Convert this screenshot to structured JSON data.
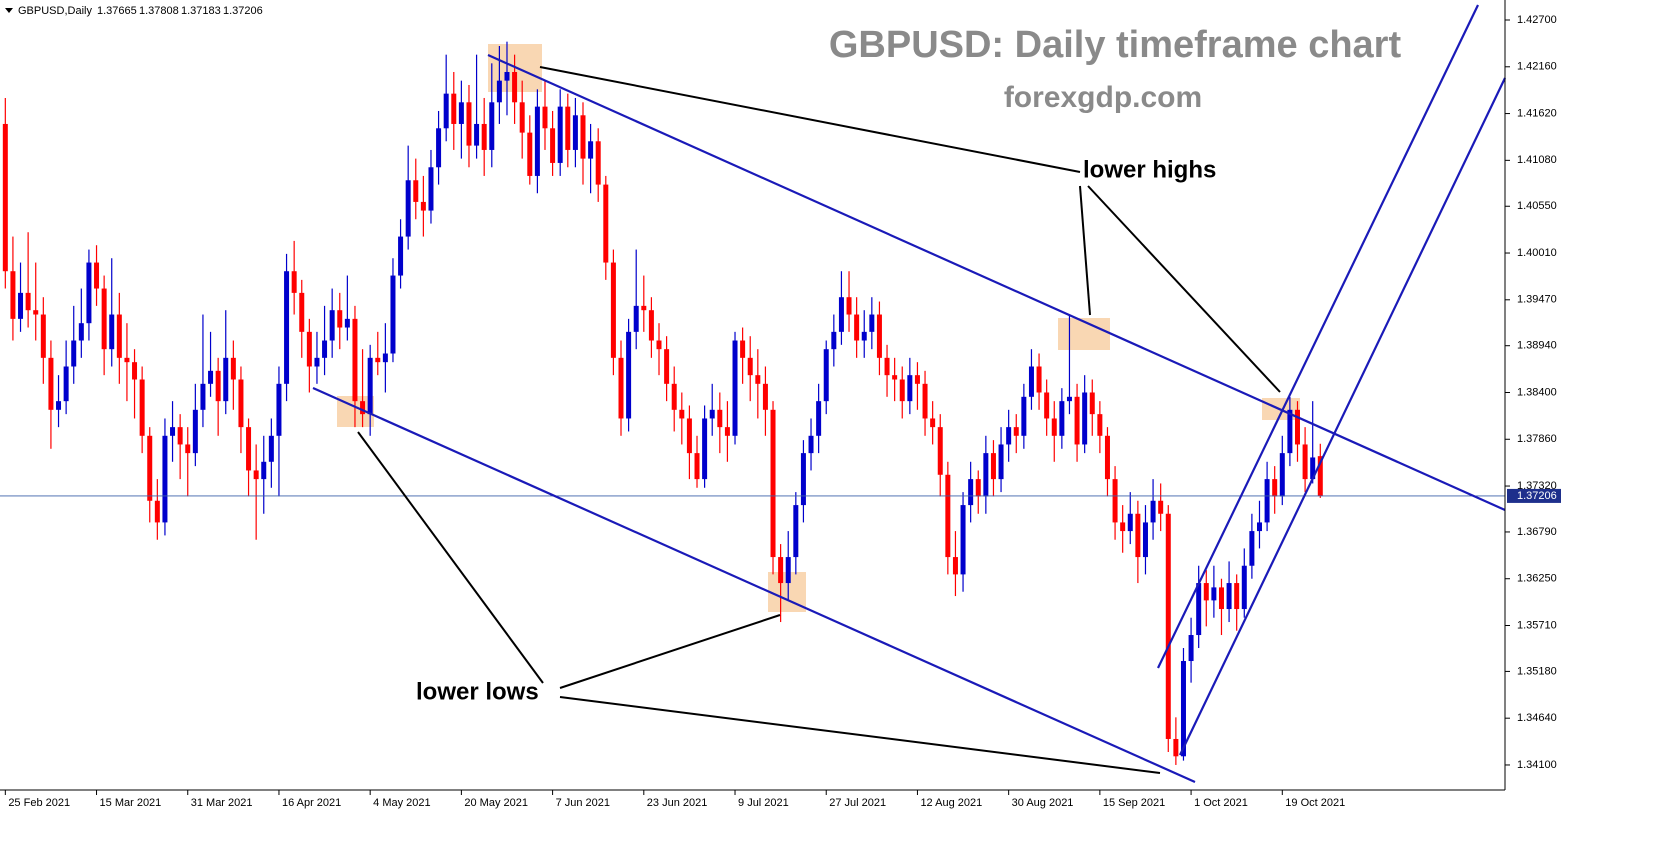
{
  "chart_data": {
    "type": "candlestick",
    "title": "GBPUSD: Daily timeframe chart",
    "subtitle": "forexgdp.com",
    "symbol": "GBPUSD,Daily",
    "annotations": [
      "lower highs",
      "lower lows"
    ],
    "up_color": "#0000cc",
    "down_color": "#ff0000",
    "grid": false,
    "xlim": [
      -0.7,
      197.3
    ],
    "ylim": [
      1.33811,
      1.42931
    ],
    "xticks": [
      {
        "value": 0,
        "label": "25 Feb 2021"
      },
      {
        "value": 12,
        "label": "15 Mar 2021"
      },
      {
        "value": 24,
        "label": "31 Mar 2021"
      },
      {
        "value": 36,
        "label": "16 Apr 2021"
      },
      {
        "value": 48,
        "label": "4 May 2021"
      },
      {
        "value": 60,
        "label": "20 May 2021"
      },
      {
        "value": 72,
        "label": "7 Jun 2021"
      },
      {
        "value": 84,
        "label": "23 Jun 2021"
      },
      {
        "value": 96,
        "label": "9 Jul 2021"
      },
      {
        "value": 108,
        "label": "27 Jul 2021"
      },
      {
        "value": 120,
        "label": "12 Aug 2021"
      },
      {
        "value": 132,
        "label": "30 Aug 2021"
      },
      {
        "value": 144,
        "label": "15 Sep 2021"
      },
      {
        "value": 156,
        "label": "1 Oct 2021"
      },
      {
        "value": 168,
        "label": "19 Oct 2021"
      }
    ],
    "yticks": [
      {
        "value": 1.427,
        "label": "1.42700"
      },
      {
        "value": 1.4216,
        "label": "1.42160"
      },
      {
        "value": 1.4162,
        "label": "1.41620"
      },
      {
        "value": 1.4108,
        "label": "1.41080"
      },
      {
        "value": 1.4055,
        "label": "1.40550"
      },
      {
        "value": 1.4001,
        "label": "1.40010"
      },
      {
        "value": 1.3947,
        "label": "1.39470"
      },
      {
        "value": 1.3894,
        "label": "1.38940"
      },
      {
        "value": 1.384,
        "label": "1.38400"
      },
      {
        "value": 1.3786,
        "label": "1.37860"
      },
      {
        "value": 1.3732,
        "label": "1.37320"
      },
      {
        "value": 1.3679,
        "label": "1.36790"
      },
      {
        "value": 1.3625,
        "label": "1.36250"
      },
      {
        "value": 1.3571,
        "label": "1.35710"
      },
      {
        "value": 1.3518,
        "label": "1.35180"
      },
      {
        "value": 1.3464,
        "label": "1.34640"
      },
      {
        "value": 1.341,
        "label": "1.34100"
      }
    ],
    "candles": [
      [
        1.415,
        1.418,
        1.396,
        1.398
      ],
      [
        1.398,
        1.402,
        1.39,
        1.3925
      ],
      [
        1.3925,
        1.399,
        1.391,
        1.3955
      ],
      [
        1.3955,
        1.4025,
        1.3915,
        1.3935
      ],
      [
        1.3935,
        1.399,
        1.39,
        1.393
      ],
      [
        1.393,
        1.395,
        1.385,
        1.388
      ],
      [
        1.388,
        1.39,
        1.3775,
        1.382
      ],
      [
        1.382,
        1.386,
        1.38,
        1.383
      ],
      [
        1.383,
        1.39,
        1.3815,
        1.387
      ],
      [
        1.387,
        1.394,
        1.385,
        1.39
      ],
      [
        1.39,
        1.396,
        1.388,
        1.392
      ],
      [
        1.392,
        1.4005,
        1.39,
        1.399
      ],
      [
        1.399,
        1.401,
        1.394,
        1.396
      ],
      [
        1.396,
        1.3975,
        1.386,
        1.389
      ],
      [
        1.389,
        1.3995,
        1.387,
        1.393
      ],
      [
        1.393,
        1.3955,
        1.385,
        1.388
      ],
      [
        1.388,
        1.392,
        1.383,
        1.3875
      ],
      [
        1.3875,
        1.389,
        1.381,
        1.3855
      ],
      [
        1.3855,
        1.387,
        1.377,
        1.379
      ],
      [
        1.379,
        1.38,
        1.369,
        1.3715
      ],
      [
        1.3715,
        1.374,
        1.367,
        1.369
      ],
      [
        1.369,
        1.381,
        1.3675,
        1.379
      ],
      [
        1.379,
        1.383,
        1.376,
        1.38
      ],
      [
        1.38,
        1.3815,
        1.374,
        1.378
      ],
      [
        1.378,
        1.38,
        1.372,
        1.377
      ],
      [
        1.377,
        1.385,
        1.3755,
        1.382
      ],
      [
        1.382,
        1.393,
        1.38,
        1.385
      ],
      [
        1.385,
        1.391,
        1.3835,
        1.3865
      ],
      [
        1.3865,
        1.388,
        1.379,
        1.383
      ],
      [
        1.383,
        1.3935,
        1.3815,
        1.388
      ],
      [
        1.388,
        1.39,
        1.382,
        1.3855
      ],
      [
        1.3855,
        1.387,
        1.377,
        1.38
      ],
      [
        1.38,
        1.381,
        1.372,
        1.375
      ],
      [
        1.375,
        1.378,
        1.367,
        1.374
      ],
      [
        1.374,
        1.379,
        1.37,
        1.376
      ],
      [
        1.376,
        1.381,
        1.373,
        1.379
      ],
      [
        1.379,
        1.387,
        1.372,
        1.385
      ],
      [
        1.385,
        1.4,
        1.383,
        1.398
      ],
      [
        1.398,
        1.4015,
        1.393,
        1.3955
      ],
      [
        1.3955,
        1.397,
        1.388,
        1.391
      ],
      [
        1.391,
        1.3925,
        1.384,
        1.387
      ],
      [
        1.387,
        1.391,
        1.385,
        1.388
      ],
      [
        1.388,
        1.394,
        1.386,
        1.39
      ],
      [
        1.39,
        1.396,
        1.388,
        1.3935
      ],
      [
        1.3935,
        1.3955,
        1.389,
        1.3915
      ],
      [
        1.3915,
        1.3975,
        1.39,
        1.3925
      ],
      [
        1.3925,
        1.394,
        1.38,
        1.383
      ],
      [
        1.383,
        1.389,
        1.38,
        1.3815
      ],
      [
        1.3815,
        1.3895,
        1.379,
        1.388
      ],
      [
        1.388,
        1.391,
        1.386,
        1.3875
      ],
      [
        1.3875,
        1.392,
        1.384,
        1.3885
      ],
      [
        1.3885,
        1.3995,
        1.3875,
        1.3975
      ],
      [
        1.3975,
        1.404,
        1.396,
        1.402
      ],
      [
        1.402,
        1.4125,
        1.4005,
        1.4085
      ],
      [
        1.4085,
        1.411,
        1.404,
        1.406
      ],
      [
        1.406,
        1.409,
        1.402,
        1.405
      ],
      [
        1.405,
        1.412,
        1.4035,
        1.41
      ],
      [
        1.41,
        1.4165,
        1.408,
        1.4145
      ],
      [
        1.4145,
        1.423,
        1.413,
        1.4185
      ],
      [
        1.4185,
        1.421,
        1.412,
        1.415
      ],
      [
        1.415,
        1.42,
        1.411,
        1.4175
      ],
      [
        1.4175,
        1.4195,
        1.41,
        1.4125
      ],
      [
        1.4125,
        1.423,
        1.411,
        1.415
      ],
      [
        1.415,
        1.418,
        1.409,
        1.412
      ],
      [
        1.412,
        1.422,
        1.41,
        1.4175
      ],
      [
        1.4175,
        1.424,
        1.415,
        1.42
      ],
      [
        1.42,
        1.4245,
        1.416,
        1.421
      ],
      [
        1.421,
        1.423,
        1.415,
        1.4175
      ],
      [
        1.4175,
        1.42,
        1.411,
        1.414
      ],
      [
        1.414,
        1.416,
        1.408,
        1.409
      ],
      [
        1.409,
        1.419,
        1.407,
        1.417
      ],
      [
        1.417,
        1.42,
        1.412,
        1.4145
      ],
      [
        1.4145,
        1.4165,
        1.409,
        1.4105
      ],
      [
        1.4105,
        1.419,
        1.409,
        1.417
      ],
      [
        1.417,
        1.4185,
        1.41,
        1.412
      ],
      [
        1.412,
        1.418,
        1.41,
        1.416
      ],
      [
        1.416,
        1.4175,
        1.408,
        1.411
      ],
      [
        1.411,
        1.415,
        1.407,
        1.413
      ],
      [
        1.413,
        1.4145,
        1.406,
        1.408
      ],
      [
        1.408,
        1.409,
        1.397,
        1.399
      ],
      [
        1.399,
        1.4005,
        1.386,
        1.388
      ],
      [
        1.388,
        1.39,
        1.379,
        1.381
      ],
      [
        1.381,
        1.3925,
        1.3795,
        1.391
      ],
      [
        1.391,
        1.4005,
        1.389,
        1.394
      ],
      [
        1.394,
        1.3975,
        1.391,
        1.3935
      ],
      [
        1.3935,
        1.395,
        1.388,
        1.39
      ],
      [
        1.39,
        1.392,
        1.386,
        1.389
      ],
      [
        1.389,
        1.3905,
        1.383,
        1.385
      ],
      [
        1.385,
        1.387,
        1.3795,
        1.382
      ],
      [
        1.382,
        1.384,
        1.378,
        1.381
      ],
      [
        1.381,
        1.3825,
        1.374,
        1.377
      ],
      [
        1.377,
        1.379,
        1.373,
        1.374
      ],
      [
        1.374,
        1.3825,
        1.373,
        1.381
      ],
      [
        1.381,
        1.385,
        1.379,
        1.382
      ],
      [
        1.382,
        1.384,
        1.377,
        1.38
      ],
      [
        1.38,
        1.383,
        1.376,
        1.379
      ],
      [
        1.379,
        1.391,
        1.378,
        1.39
      ],
      [
        1.39,
        1.3915,
        1.385,
        1.388
      ],
      [
        1.388,
        1.3905,
        1.383,
        1.386
      ],
      [
        1.386,
        1.389,
        1.381,
        1.385
      ],
      [
        1.385,
        1.387,
        1.379,
        1.382
      ],
      [
        1.382,
        1.383,
        1.363,
        1.365
      ],
      [
        1.365,
        1.3665,
        1.3575,
        1.362
      ],
      [
        1.362,
        1.368,
        1.36,
        1.365
      ],
      [
        1.365,
        1.3725,
        1.363,
        1.371
      ],
      [
        1.371,
        1.3785,
        1.369,
        1.377
      ],
      [
        1.377,
        1.381,
        1.375,
        1.379
      ],
      [
        1.379,
        1.385,
        1.377,
        1.383
      ],
      [
        1.383,
        1.39,
        1.3815,
        1.389
      ],
      [
        1.389,
        1.393,
        1.387,
        1.391
      ],
      [
        1.391,
        1.398,
        1.3895,
        1.395
      ],
      [
        1.395,
        1.398,
        1.391,
        1.393
      ],
      [
        1.393,
        1.395,
        1.388,
        1.39
      ],
      [
        1.39,
        1.3935,
        1.388,
        1.391
      ],
      [
        1.391,
        1.395,
        1.389,
        1.393
      ],
      [
        1.393,
        1.3945,
        1.386,
        1.388
      ],
      [
        1.388,
        1.3895,
        1.3835,
        1.386
      ],
      [
        1.386,
        1.388,
        1.383,
        1.3855
      ],
      [
        1.3855,
        1.387,
        1.381,
        1.383
      ],
      [
        1.383,
        1.388,
        1.3815,
        1.386
      ],
      [
        1.386,
        1.3875,
        1.382,
        1.385
      ],
      [
        1.385,
        1.3865,
        1.379,
        1.381
      ],
      [
        1.381,
        1.383,
        1.378,
        1.38
      ],
      [
        1.38,
        1.3815,
        1.372,
        1.3745
      ],
      [
        1.3745,
        1.376,
        1.363,
        1.365
      ],
      [
        1.365,
        1.368,
        1.3605,
        1.363
      ],
      [
        1.363,
        1.3725,
        1.361,
        1.371
      ],
      [
        1.371,
        1.376,
        1.369,
        1.374
      ],
      [
        1.374,
        1.375,
        1.37,
        1.372
      ],
      [
        1.372,
        1.379,
        1.37,
        1.377
      ],
      [
        1.377,
        1.3785,
        1.372,
        1.374
      ],
      [
        1.374,
        1.38,
        1.3725,
        1.378
      ],
      [
        1.378,
        1.382,
        1.376,
        1.38
      ],
      [
        1.38,
        1.3815,
        1.377,
        1.379
      ],
      [
        1.379,
        1.385,
        1.3775,
        1.3835
      ],
      [
        1.3835,
        1.389,
        1.382,
        1.387
      ],
      [
        1.387,
        1.3885,
        1.382,
        1.384
      ],
      [
        1.384,
        1.3855,
        1.379,
        1.381
      ],
      [
        1.381,
        1.383,
        1.376,
        1.379
      ],
      [
        1.379,
        1.3845,
        1.3775,
        1.383
      ],
      [
        1.383,
        1.393,
        1.3815,
        1.3835
      ],
      [
        1.3835,
        1.385,
        1.376,
        1.378
      ],
      [
        1.378,
        1.386,
        1.377,
        1.384
      ],
      [
        1.384,
        1.3855,
        1.379,
        1.3815
      ],
      [
        1.3815,
        1.383,
        1.377,
        1.379
      ],
      [
        1.379,
        1.38,
        1.372,
        1.374
      ],
      [
        1.374,
        1.3755,
        1.367,
        1.369
      ],
      [
        1.369,
        1.371,
        1.3655,
        1.368
      ],
      [
        1.368,
        1.3725,
        1.3665,
        1.37
      ],
      [
        1.37,
        1.3715,
        1.362,
        1.365
      ],
      [
        1.365,
        1.371,
        1.363,
        1.369
      ],
      [
        1.369,
        1.374,
        1.367,
        1.3715
      ],
      [
        1.3715,
        1.3735,
        1.368,
        1.37
      ],
      [
        1.37,
        1.371,
        1.3425,
        1.344
      ],
      [
        1.344,
        1.3465,
        1.341,
        1.342
      ],
      [
        1.342,
        1.3545,
        1.3415,
        1.353
      ],
      [
        1.353,
        1.358,
        1.3505,
        1.356
      ],
      [
        1.356,
        1.364,
        1.3545,
        1.362
      ],
      [
        1.362,
        1.3635,
        1.357,
        1.36
      ],
      [
        1.36,
        1.364,
        1.358,
        1.3615
      ],
      [
        1.3615,
        1.3625,
        1.356,
        1.359
      ],
      [
        1.359,
        1.3645,
        1.3575,
        1.362
      ],
      [
        1.362,
        1.363,
        1.3565,
        1.359
      ],
      [
        1.359,
        1.366,
        1.358,
        1.364
      ],
      [
        1.364,
        1.37,
        1.3625,
        1.368
      ],
      [
        1.368,
        1.3715,
        1.366,
        1.369
      ],
      [
        1.369,
        1.376,
        1.368,
        1.374
      ],
      [
        1.374,
        1.3755,
        1.37,
        1.372
      ],
      [
        1.372,
        1.379,
        1.371,
        1.377
      ],
      [
        1.377,
        1.3835,
        1.3755,
        1.382
      ],
      [
        1.382,
        1.383,
        1.376,
        1.378
      ],
      [
        1.378,
        1.38,
        1.3725,
        1.374
      ],
      [
        1.374,
        1.383,
        1.3735,
        1.3765
      ],
      [
        1.37665,
        1.37808,
        1.37183,
        1.37206
      ]
    ]
  }
}
